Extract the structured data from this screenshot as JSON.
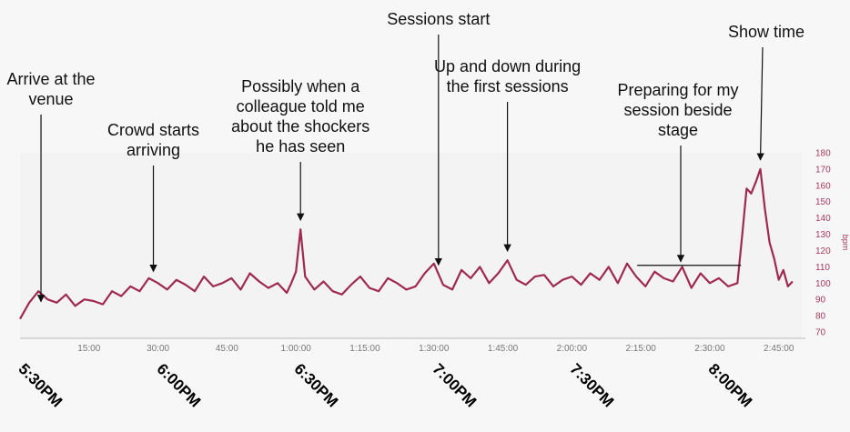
{
  "chart_data": {
    "type": "line",
    "title": "",
    "xlabel": "",
    "ylabel": "bpm",
    "xlim": [
      0,
      170
    ],
    "ylim": [
      70,
      180
    ],
    "x_ticks": [
      {
        "x": 15,
        "label": "15:00"
      },
      {
        "x": 30,
        "label": "30:00"
      },
      {
        "x": 45,
        "label": "45:00"
      },
      {
        "x": 60,
        "label": "1:00:00"
      },
      {
        "x": 75,
        "label": "1:15:00"
      },
      {
        "x": 90,
        "label": "1:30:00"
      },
      {
        "x": 105,
        "label": "1:45:00"
      },
      {
        "x": 120,
        "label": "2:00:00"
      },
      {
        "x": 135,
        "label": "2:15:00"
      },
      {
        "x": 150,
        "label": "2:30:00"
      },
      {
        "x": 165,
        "label": "2:45:00"
      }
    ],
    "y_ticks": [
      70,
      80,
      90,
      100,
      110,
      120,
      130,
      140,
      150,
      160,
      170,
      180
    ],
    "series": [
      {
        "name": "",
        "color": "#9e2a4f",
        "x": [
          0,
          2,
          4,
          6,
          8,
          10,
          12,
          14,
          16,
          18,
          20,
          22,
          24,
          26,
          28,
          30,
          32,
          34,
          36,
          38,
          40,
          42,
          44,
          46,
          48,
          50,
          52,
          54,
          56,
          58,
          59,
          60,
          61,
          62,
          64,
          66,
          68,
          70,
          72,
          74,
          76,
          78,
          80,
          82,
          84,
          86,
          88,
          90,
          92,
          94,
          96,
          98,
          100,
          102,
          104,
          106,
          108,
          110,
          112,
          114,
          116,
          118,
          120,
          122,
          124,
          126,
          128,
          130,
          132,
          134,
          136,
          138,
          140,
          142,
          144,
          146,
          148,
          150,
          152,
          154,
          156,
          157,
          158,
          159,
          160,
          161,
          162,
          163,
          164,
          165,
          166,
          167,
          168
        ],
        "y": [
          78,
          88,
          95,
          90,
          88,
          93,
          86,
          90,
          89,
          87,
          95,
          92,
          98,
          95,
          103,
          100,
          96,
          102,
          99,
          95,
          104,
          98,
          100,
          103,
          96,
          106,
          101,
          97,
          100,
          94,
          100,
          107,
          133,
          104,
          96,
          101,
          95,
          93,
          99,
          104,
          97,
          95,
          103,
          100,
          96,
          98,
          106,
          112,
          99,
          96,
          108,
          103,
          110,
          100,
          106,
          114,
          102,
          99,
          104,
          105,
          98,
          102,
          104,
          99,
          106,
          102,
          110,
          100,
          112,
          104,
          98,
          107,
          103,
          101,
          110,
          97,
          106,
          100,
          103,
          98,
          100,
          128,
          158,
          155,
          162,
          170,
          145,
          125,
          115,
          102,
          108,
          98,
          101
        ]
      }
    ],
    "annotations": [
      {
        "text": "Arrive at the\nvenue",
        "x": 1
      },
      {
        "text": "Crowd starts\narriving",
        "x": 29
      },
      {
        "text": "Possibly when a\ncolleague told me\nabout the shockers\nhe has seen",
        "x": 61
      },
      {
        "text": "Sessions start",
        "x": 91
      },
      {
        "text": "Up and down during\nthe first sessions",
        "x": 106
      },
      {
        "text": "Preparing for my\nsession beside\nstage",
        "x": 146
      },
      {
        "text": "Show time",
        "x": 161
      }
    ],
    "bracket": {
      "x_start": 135,
      "x_end": 156,
      "y": 112
    },
    "clock_labels": [
      {
        "text": "5:30PM",
        "x": 0
      },
      {
        "text": "6:00PM",
        "x": 30
      },
      {
        "text": "6:30PM",
        "x": 60
      },
      {
        "text": "7:00PM",
        "x": 90
      },
      {
        "text": "7:30PM",
        "x": 120
      },
      {
        "text": "8:00PM",
        "x": 150
      }
    ],
    "grid": false,
    "legend": "none"
  }
}
